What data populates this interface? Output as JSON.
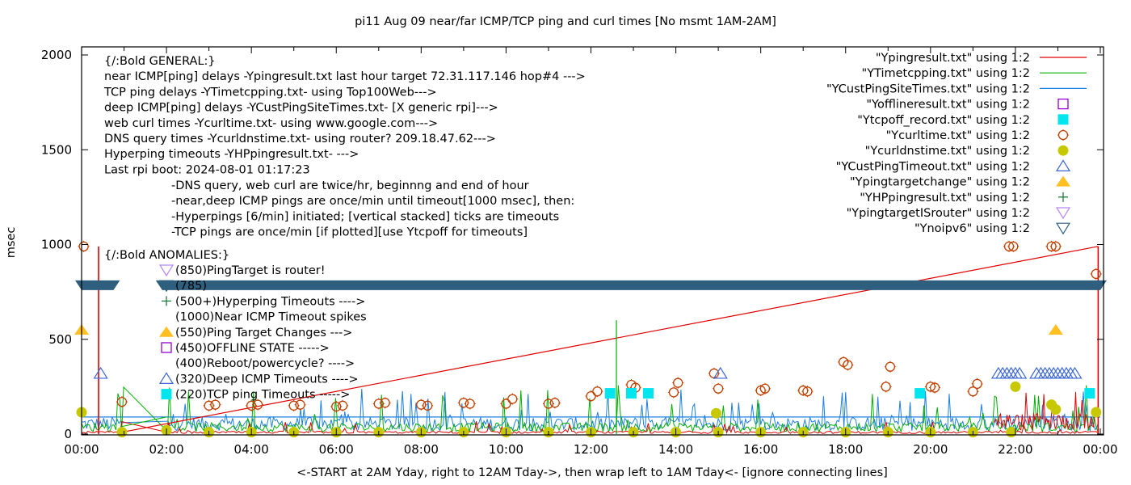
{
  "chart_data": {
    "type": "line",
    "title": "pi11 Aug 09  near/far ICMP/TCP ping and curl times [No msmt 1AM-2AM]",
    "xlabel": "<-START at 2AM Yday, right to 12AM Tday->, then wrap left to 1AM Tday<- [ignore connecting lines]",
    "ylabel": "msec",
    "xlim": [
      0,
      24
    ],
    "ylim": [
      0,
      2050
    ],
    "x_ticks": [
      "00:00",
      "02:00",
      "04:00",
      "06:00",
      "08:00",
      "10:00",
      "12:00",
      "14:00",
      "16:00",
      "18:00",
      "20:00",
      "22:00",
      "00:00"
    ],
    "y_ticks": [
      "0",
      "500",
      "1000",
      "1500",
      "2000"
    ],
    "y_tick_values": [
      0,
      500,
      1000,
      1500,
      2000
    ],
    "grid": false,
    "legend_position": "top-right",
    "notes_general": [
      "{/:Bold GENERAL:}",
      "near ICMP[ping] delays -Ypingresult.txt last hour target 72.31.117.146 hop#4 --->",
      "TCP ping delays -YTimetcpping.txt- using Top100Web--->",
      "deep ICMP[ping] delays -YCustPingSiteTimes.txt- [X generic rpi]--->",
      "web curl times -Ycurltime.txt- using www.google.com--->",
      "DNS query times -Ycurldnstime.txt- using router? 209.18.47.62--->",
      "Hyperping timeouts -YHPpingresult.txt- --->",
      "Last rpi boot: 2024-08-01 01:17:23"
    ],
    "notes_indented": [
      "-DNS query, web curl are twice/hr, beginnng and end of hour",
      "-near,deep ICMP pings are once/min until timeout[1000 msec], then:",
      " -Hyperpings [6/min] initiated; [vertical stacked] ticks are timeouts",
      "-TCP pings are once/min [if plotted][use Ytcpoff for timeouts]"
    ],
    "anomalies_title": "{/:Bold ANOMALIES:}",
    "anomalies": [
      {
        "label": "(850)PingTarget is router!",
        "marker": "triangle-down-open",
        "color": "#b388ff"
      },
      {
        "label": "(785)",
        "marker": "triangle-down-open",
        "color": "#2f5f7f"
      },
      {
        "label": "(500+)Hyperping Timeouts ---->",
        "marker": "plus",
        "color": "#1b7a3a"
      },
      {
        "label": "(1000)Near ICMP Timeout spikes",
        "marker": "none",
        "color": "#000000"
      },
      {
        "label": "(550)Ping Target Changes --->",
        "marker": "triangle-filled",
        "color": "#ffc020"
      },
      {
        "label": "(450)OFFLINE STATE ----->",
        "marker": "square-open",
        "color": "#9400d3"
      },
      {
        "label": "(400)Reboot/powercycle? ---->",
        "marker": "none",
        "color": "#000000"
      },
      {
        "label": "(320)Deep ICMP Timeouts ---->",
        "marker": "triangle-open",
        "color": "#3a66d8"
      },
      {
        "label": "(220)TCP ping Timeouts ----->",
        "marker": "square-filled",
        "color": "#00e5ee"
      }
    ],
    "legend": [
      {
        "label": "\"Ypingresult.txt\" using 1:2",
        "marker": "line",
        "color": "#e00000"
      },
      {
        "label": "\"YTimetcpping.txt\" using 1:2",
        "marker": "line",
        "color": "#00b000"
      },
      {
        "label": "\"YCustPingSiteTimes.txt\" using 1:2",
        "marker": "line",
        "color": "#1e7fe0"
      },
      {
        "label": "\"Yofflineresult.txt\" using 1:2",
        "marker": "square-open",
        "color": "#9400d3"
      },
      {
        "label": "\"Ytcpoff_record.txt\" using 1:2",
        "marker": "square-filled",
        "color": "#00e5ee"
      },
      {
        "label": "\"Ycurltime.txt\" using 1:2",
        "marker": "circle-open",
        "color": "#c04000"
      },
      {
        "label": "\"Ycurldnstime.txt\" using 1:2",
        "marker": "circle-filled",
        "color": "#c8c800"
      },
      {
        "label": "\"YCustPingTimeout.txt\" using 1:2",
        "marker": "triangle-open",
        "color": "#3a66d8"
      },
      {
        "label": "\"Ypingtargetchange\" using 1:2",
        "marker": "triangle-filled",
        "color": "#ffc020"
      },
      {
        "label": "\"YHPpingresult.txt\" using 1:2",
        "marker": "plus",
        "color": "#1b7a3a"
      },
      {
        "label": "\"YpingtargetISrouter\" using 1:2",
        "marker": "triangle-down-open",
        "color": "#b388ff"
      },
      {
        "label": "\"Ynoipv6\" using 1:2",
        "marker": "triangle-down-open",
        "color": "#2f5f7f"
      }
    ],
    "series": [
      {
        "name": "Ycurltime.txt",
        "type": "circle-open",
        "color": "#c04000",
        "x": [
          0.05,
          0.95,
          3.0,
          3.15,
          4.0,
          4.15,
          5.0,
          5.15,
          6.0,
          6.15,
          7.0,
          7.15,
          8.0,
          8.15,
          9.0,
          9.15,
          10.0,
          10.15,
          11.0,
          11.15,
          12.0,
          12.15,
          12.95,
          13.05,
          13.95,
          14.05,
          14.9,
          15.0,
          16.0,
          16.1,
          17.0,
          17.1,
          17.95,
          18.05,
          18.95,
          19.05,
          20.0,
          20.1,
          21.0,
          21.1,
          21.85,
          21.95,
          22.85,
          22.95,
          23.9
        ],
        "y": [
          990,
          170,
          150,
          155,
          150,
          155,
          150,
          155,
          145,
          150,
          160,
          165,
          155,
          150,
          165,
          160,
          160,
          185,
          160,
          165,
          200,
          225,
          260,
          245,
          220,
          270,
          320,
          240,
          230,
          240,
          230,
          225,
          380,
          365,
          250,
          355,
          250,
          245,
          225,
          265,
          990,
          990,
          990,
          990,
          845
        ]
      },
      {
        "name": "Ycurldnstime.txt",
        "type": "circle-filled",
        "color": "#c8c800",
        "x": [
          0.0,
          0.95,
          2.0,
          3.0,
          4.0,
          5.0,
          6.0,
          7.0,
          8.0,
          9.0,
          10.0,
          11.0,
          12.0,
          13.0,
          14.0,
          14.95,
          15.0,
          16.0,
          17.0,
          18.0,
          19.0,
          20.0,
          21.0,
          21.9,
          22.0,
          22.85,
          22.95,
          23.9
        ],
        "y": [
          115,
          10,
          20,
          10,
          10,
          10,
          10,
          10,
          10,
          10,
          10,
          10,
          10,
          10,
          10,
          110,
          10,
          10,
          10,
          10,
          10,
          10,
          10,
          10,
          250,
          155,
          130,
          115
        ]
      },
      {
        "name": "Ytcpoff_record.txt",
        "type": "square-filled",
        "color": "#00e5ee",
        "x": [
          12.45,
          12.95,
          13.35,
          19.75,
          23.75
        ],
        "y": [
          215,
          215,
          215,
          215,
          215
        ]
      },
      {
        "name": "YCustPingTimeout.txt",
        "type": "triangle-open",
        "color": "#3a66d8",
        "x": [
          0.45,
          15.05,
          21.6,
          21.7,
          21.8,
          21.9,
          22.0,
          22.1,
          22.5,
          22.6,
          22.7,
          22.8,
          22.9,
          23.0,
          23.1,
          23.2,
          23.3,
          23.4
        ],
        "y": [
          320,
          320,
          320,
          320,
          320,
          320,
          320,
          320,
          320,
          320,
          320,
          320,
          320,
          320,
          320,
          320,
          320,
          320
        ]
      },
      {
        "name": "Ypingtargetchange",
        "type": "triangle-filled",
        "color": "#ffc020",
        "x": [
          0.0,
          22.95
        ],
        "y": [
          550,
          550
        ]
      },
      {
        "name": "Ynoipv6",
        "type": "triangle-down-open",
        "color": "#2f5f7f",
        "x_range": [
          0.0,
          24.0
        ],
        "gap": [
          1.1,
          1.9
        ],
        "y": 785
      }
    ],
    "lines": [
      {
        "name": "Ypingresult.txt",
        "color": "#e00000",
        "typical": 10,
        "spikes": [
          {
            "x": 0.4,
            "y": 990
          },
          {
            "x": 23.95,
            "y": 990
          }
        ],
        "wrap_line": {
          "x": [
            0.95,
            23.95
          ],
          "y": [
            10,
            990
          ]
        }
      },
      {
        "name": "YTimetcpping.txt",
        "color": "#00b000",
        "typical": 40,
        "spikes": [
          {
            "x": 12.6,
            "y": 600
          }
        ]
      },
      {
        "name": "YCustPingSiteTimes.txt",
        "color": "#1e7fe0",
        "typical": 60,
        "baseline": 90
      }
    ]
  }
}
